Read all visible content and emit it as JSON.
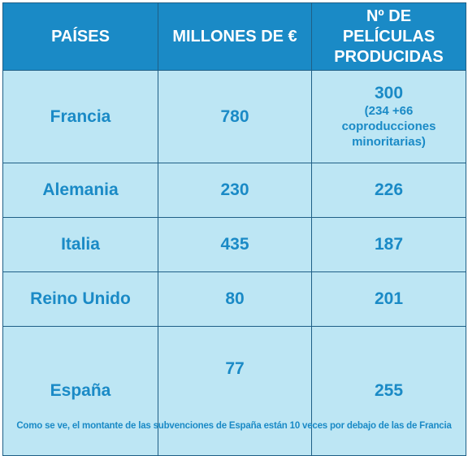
{
  "chart_data": {
    "type": "table",
    "columns": [
      "PAÍSES",
      "MILLONES DE €",
      "Nº DE PELÍCULAS PRODUCIDAS"
    ],
    "rows": [
      {
        "country": "Francia",
        "millions_eur": "780",
        "films": "300",
        "films_note": "(234 +66 coproducciones minoritarias)"
      },
      {
        "country": "Alemania",
        "millions_eur": "230",
        "films": "226"
      },
      {
        "country": "Italia",
        "millions_eur": "435",
        "films": "187"
      },
      {
        "country": "Reino Unido",
        "millions_eur": "80",
        "films": "201"
      },
      {
        "country": "España",
        "millions_eur": "77",
        "films": "255"
      }
    ],
    "caption": "Como se ve, el montante de las subvenciones de España están 10 veces por debajo de las de Francia",
    "colors": {
      "header_bg": "#1a8ac6",
      "header_text": "#ffffff",
      "cell_bg": "#bde6f4",
      "cell_text": "#1a8ac6",
      "border": "#1f5f86"
    }
  }
}
